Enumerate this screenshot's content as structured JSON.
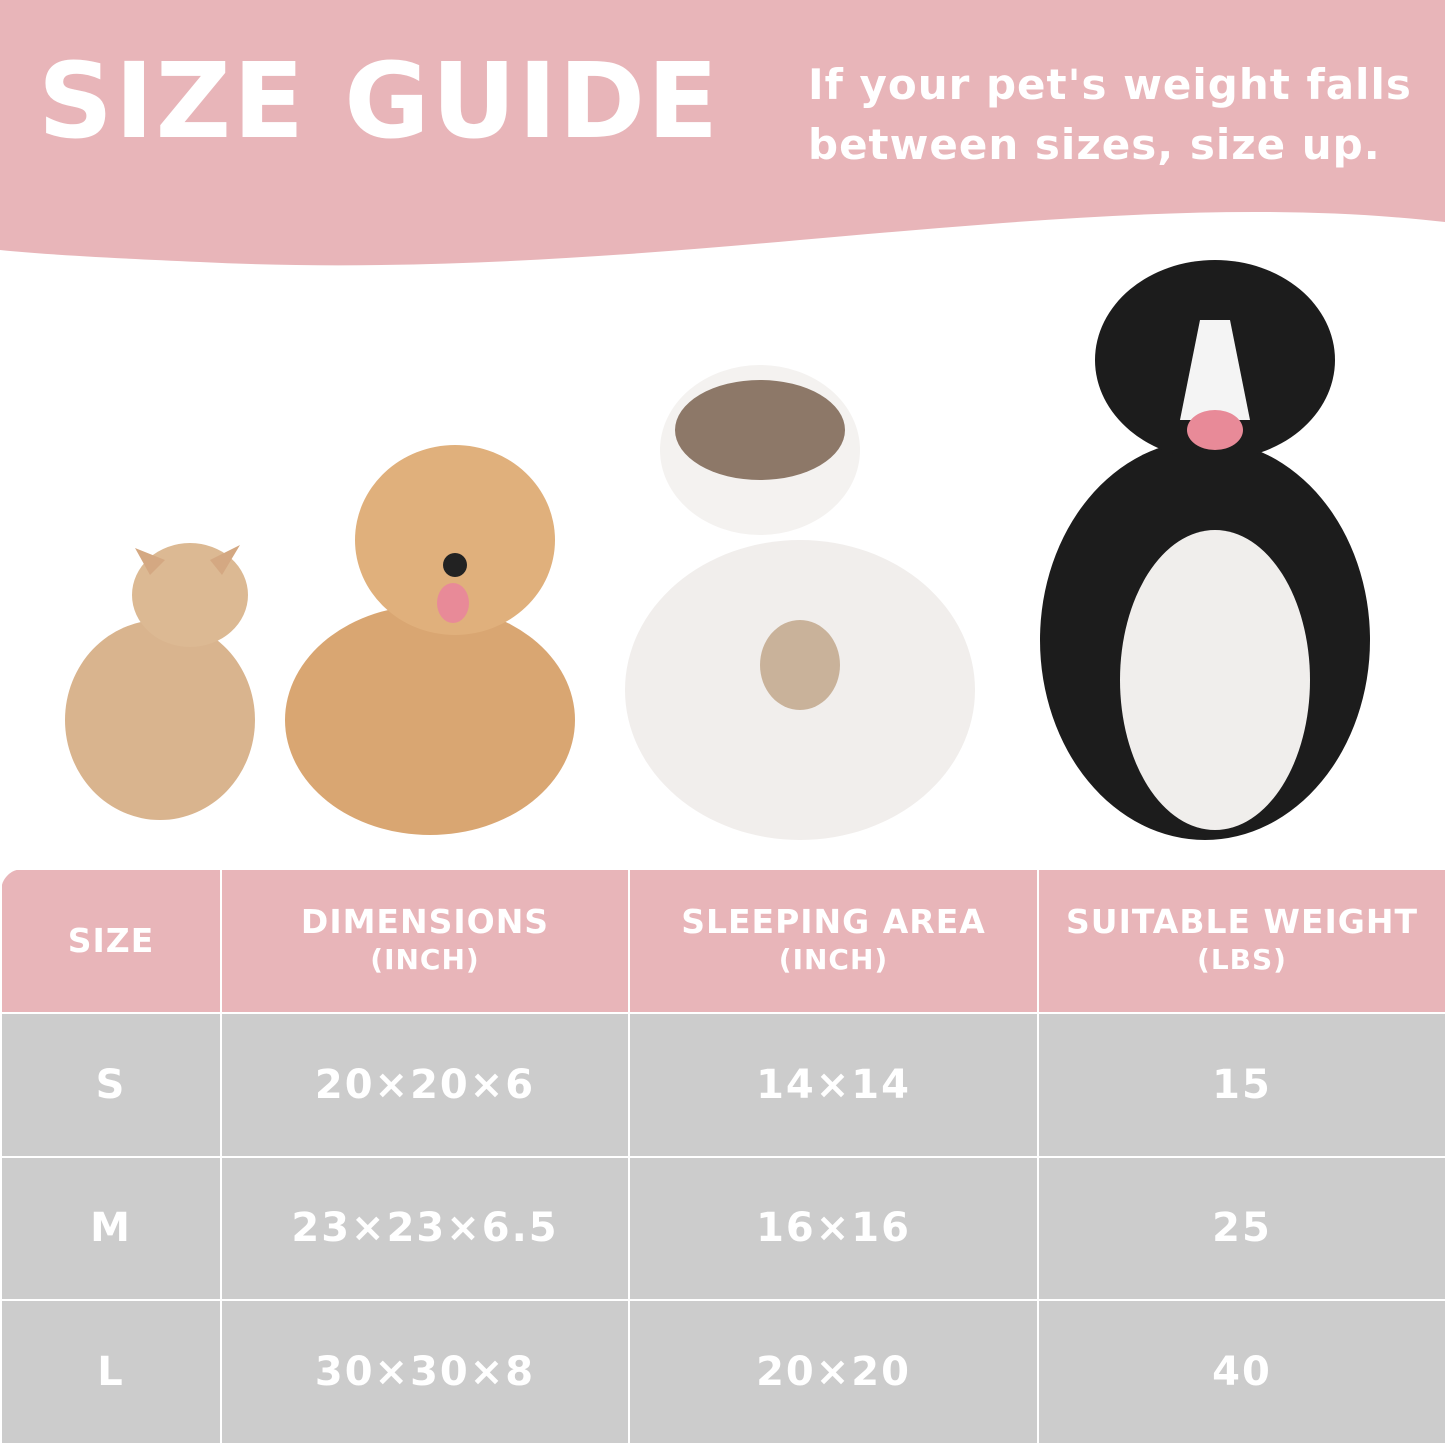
{
  "header": {
    "title": "SIZE GUIDE",
    "subtitle_line1": "If your pet's weight falls",
    "subtitle_line2": "between sizes, size up."
  },
  "colors": {
    "pink": "#e8b5b9",
    "gray": "#cccccc",
    "text": "#ffffff"
  },
  "pets": [
    "small-cat",
    "small-dog",
    "large-cat",
    "large-dog"
  ],
  "table": {
    "headers": [
      {
        "label": "SIZE",
        "unit": ""
      },
      {
        "label": "DIMENSIONS",
        "unit": "(INCH)"
      },
      {
        "label": "SLEEPING AREA",
        "unit": "(INCH)"
      },
      {
        "label": "SUITABLE WEIGHT",
        "unit": "(LBS)"
      }
    ],
    "rows": [
      [
        "S",
        "20×20×6",
        "14×14",
        "15"
      ],
      [
        "M",
        "23×23×6.5",
        "16×16",
        "25"
      ],
      [
        "L",
        "30×30×8",
        "20×20",
        "40"
      ]
    ]
  }
}
